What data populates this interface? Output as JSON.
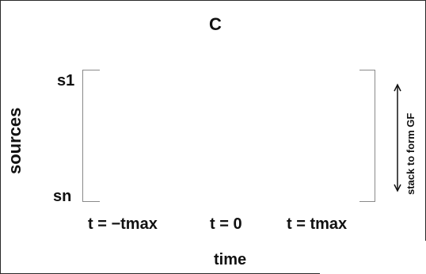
{
  "title": "C",
  "y_axis": {
    "label": "sources",
    "top": "s1",
    "bottom": "sn"
  },
  "x_axis": {
    "label": "time",
    "ticks": [
      "t = −tmax",
      "t = 0",
      "t = tmax"
    ]
  },
  "annotation": "stack to form GF",
  "colors": {
    "text": "#111111",
    "bracket": "#8a8a8a",
    "frame": "#2a2a2a"
  }
}
